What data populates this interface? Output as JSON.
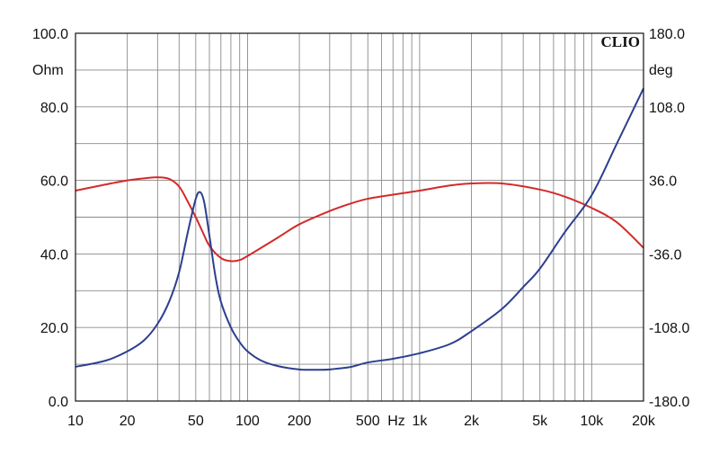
{
  "chart_data": {
    "type": "line",
    "brand": "CLIO",
    "x_scale": "log",
    "xlim": [
      10,
      20000
    ],
    "x_ticks": [
      {
        "v": 10,
        "label": "10"
      },
      {
        "v": 20,
        "label": "20"
      },
      {
        "v": 50,
        "label": "50"
      },
      {
        "v": 100,
        "label": "100"
      },
      {
        "v": 200,
        "label": "200"
      },
      {
        "v": 500,
        "label": "500"
      },
      {
        "v": 1000,
        "label": "1k"
      },
      {
        "v": 2000,
        "label": "2k"
      },
      {
        "v": 5000,
        "label": "5k"
      },
      {
        "v": 10000,
        "label": "10k"
      },
      {
        "v": 20000,
        "label": "20k"
      }
    ],
    "x_unit_label": "Hz",
    "y_left": {
      "unit": "Ohm",
      "lim": [
        0,
        100
      ],
      "ticks": [
        {
          "v": 0,
          "label": "0.0"
        },
        {
          "v": 20,
          "label": "20.0"
        },
        {
          "v": 40,
          "label": "40.0"
        },
        {
          "v": 60,
          "label": "60.0"
        },
        {
          "v": 80,
          "label": "80.0"
        },
        {
          "v": 100,
          "label": "100.0"
        }
      ]
    },
    "y_right": {
      "unit": "deg",
      "lim": [
        -180,
        180
      ],
      "ticks": [
        {
          "v": -180,
          "label": "-180.0"
        },
        {
          "v": -108,
          "label": "-108.0"
        },
        {
          "v": -36,
          "label": "-36.0"
        },
        {
          "v": 36,
          "label": "36.0"
        },
        {
          "v": 108,
          "label": "108.0"
        },
        {
          "v": 180,
          "label": "180.0"
        }
      ]
    },
    "grid": true,
    "series": [
      {
        "axis": "left",
        "color": "#2b3f8f",
        "points": [
          [
            10,
            9.3
          ],
          [
            15,
            11.0
          ],
          [
            20,
            13.5
          ],
          [
            25,
            16.5
          ],
          [
            30,
            21.0
          ],
          [
            35,
            27.0
          ],
          [
            40,
            35.0
          ],
          [
            45,
            46.0
          ],
          [
            50,
            55.0
          ],
          [
            53,
            56.8
          ],
          [
            56,
            54.0
          ],
          [
            60,
            45.0
          ],
          [
            65,
            34.0
          ],
          [
            70,
            27.0
          ],
          [
            80,
            20.0
          ],
          [
            90,
            16.0
          ],
          [
            100,
            13.5
          ],
          [
            120,
            11.0
          ],
          [
            150,
            9.5
          ],
          [
            200,
            8.6
          ],
          [
            250,
            8.5
          ],
          [
            300,
            8.6
          ],
          [
            400,
            9.3
          ],
          [
            500,
            10.5
          ],
          [
            700,
            11.5
          ],
          [
            1000,
            13.0
          ],
          [
            1500,
            15.5
          ],
          [
            2000,
            19.0
          ],
          [
            3000,
            25.0
          ],
          [
            4000,
            31.0
          ],
          [
            5000,
            36.0
          ],
          [
            7000,
            46.0
          ],
          [
            10000,
            56.0
          ],
          [
            14000,
            70.0
          ],
          [
            20000,
            85.0
          ]
        ]
      },
      {
        "axis": "right",
        "color": "#d42a2a",
        "points": [
          [
            10,
            26.0
          ],
          [
            15,
            32.0
          ],
          [
            20,
            36.0
          ],
          [
            25,
            38.0
          ],
          [
            30,
            39.0
          ],
          [
            35,
            37.5
          ],
          [
            40,
            30.0
          ],
          [
            45,
            15.0
          ],
          [
            50,
            0.0
          ],
          [
            55,
            -15.0
          ],
          [
            60,
            -28.0
          ],
          [
            70,
            -40.0
          ],
          [
            80,
            -43.0
          ],
          [
            90,
            -42.0
          ],
          [
            100,
            -38.0
          ],
          [
            150,
            -20.0
          ],
          [
            200,
            -7.0
          ],
          [
            300,
            6.0
          ],
          [
            400,
            13.5
          ],
          [
            500,
            18.0
          ],
          [
            700,
            22.0
          ],
          [
            1000,
            26.0
          ],
          [
            1500,
            31.0
          ],
          [
            2000,
            33.0
          ],
          [
            3000,
            33.0
          ],
          [
            5000,
            27.0
          ],
          [
            7000,
            20.0
          ],
          [
            10000,
            9.0
          ],
          [
            14000,
            -5.0
          ],
          [
            20000,
            -30.0
          ]
        ]
      }
    ]
  }
}
